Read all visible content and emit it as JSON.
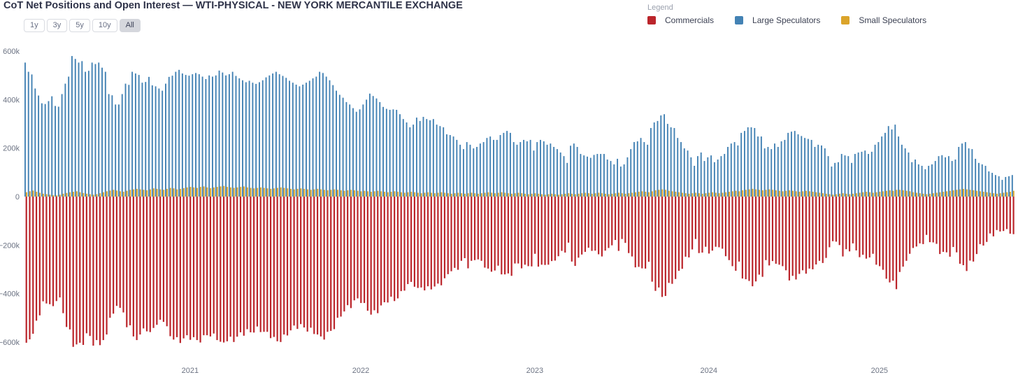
{
  "title": "CoT Net Positions and Open Interest — WTI-PHYSICAL - NEW YORK MERCANTILE EXCHANGE",
  "toolbar": {
    "ranges": [
      "1y",
      "3y",
      "5y",
      "10y",
      "All"
    ],
    "active": "All"
  },
  "legend": {
    "label": "Legend",
    "items": [
      {
        "label": "Commercials",
        "color": "#bb252b"
      },
      {
        "label": "Large Speculators",
        "color": "#4382b4"
      },
      {
        "label": "Small Speculators",
        "color": "#dba42a"
      }
    ]
  },
  "chart_data": {
    "type": "bar",
    "title": "CoT Net Positions and Open Interest — WTI-PHYSICAL - NEW YORK MERCANTILE EXCHANGE",
    "values_unit": "thousands of contracts (net positions, weekly)",
    "grid": false,
    "legend_position": "top-right",
    "ylim": [
      -650,
      650
    ],
    "y_ticks": [
      {
        "value": 600,
        "label": "600k"
      },
      {
        "value": 400,
        "label": "400k"
      },
      {
        "value": 200,
        "label": "200k"
      },
      {
        "value": 0,
        "label": "0"
      },
      {
        "value": -200,
        "label": "−200k"
      },
      {
        "value": -400,
        "label": "−400k"
      },
      {
        "value": -600,
        "label": "−600k"
      }
    ],
    "x_year_labels": [
      "2021",
      "2022",
      "2023",
      "2024",
      "2025"
    ],
    "year_tick_indices": [
      49,
      100,
      152,
      204,
      255
    ],
    "series": [
      {
        "name": "Commercials",
        "color": "#bb252b",
        "values": [
          -603,
          -589,
          -566,
          -512,
          -490,
          -432,
          -441,
          -444,
          -452,
          -431,
          -416,
          -481,
          -538,
          -548,
          -620,
          -610,
          -603,
          -612,
          -564,
          -575,
          -615,
          -592,
          -613,
          -592,
          -569,
          -500,
          -483,
          -451,
          -459,
          -478,
          -539,
          -531,
          -577,
          -592,
          -569,
          -544,
          -556,
          -559,
          -542,
          -529,
          -508,
          -517,
          -535,
          -576,
          -590,
          -580,
          -604,
          -585,
          -572,
          -591,
          -580,
          -592,
          -602,
          -572,
          -572,
          -577,
          -565,
          -592,
          -599,
          -602,
          -597,
          -578,
          -600,
          -578,
          -560,
          -574,
          -547,
          -560,
          -561,
          -536,
          -559,
          -558,
          -558,
          -584,
          -579,
          -597,
          -600,
          -569,
          -573,
          -552,
          -532,
          -546,
          -526,
          -540,
          -557,
          -541,
          -567,
          -569,
          -577,
          -590,
          -558,
          -554,
          -547,
          -500,
          -495,
          -474,
          -448,
          -460,
          -428,
          -420,
          -439,
          -439,
          -471,
          -487,
          -469,
          -481,
          -449,
          -436,
          -437,
          -413,
          -431,
          -420,
          -390,
          -388,
          -361,
          -352,
          -372,
          -377,
          -375,
          -387,
          -370,
          -383,
          -371,
          -359,
          -366,
          -337,
          -320,
          -308,
          -294,
          -302,
          -265,
          -254,
          -296,
          -265,
          -262,
          -259,
          -265,
          -293,
          -297,
          -310,
          -305,
          -285,
          -321,
          -321,
          -317,
          -327,
          -276,
          -276,
          -296,
          -281,
          -287,
          -288,
          -236,
          -289,
          -281,
          -282,
          -281,
          -266,
          -264,
          -246,
          -224,
          -231,
          -190,
          -268,
          -286,
          -252,
          -239,
          -228,
          -211,
          -224,
          -223,
          -238,
          -247,
          -223,
          -212,
          -201,
          -179,
          -224,
          -175,
          -191,
          -233,
          -247,
          -292,
          -290,
          -296,
          -297,
          -269,
          -351,
          -389,
          -375,
          -414,
          -410,
          -356,
          -360,
          -340,
          -306,
          -298,
          -248,
          -251,
          -218,
          -175,
          -233,
          -231,
          -207,
          -235,
          -223,
          -207,
          -209,
          -215,
          -246,
          -262,
          -287,
          -306,
          -268,
          -338,
          -341,
          -348,
          -370,
          -350,
          -322,
          -331,
          -262,
          -284,
          -266,
          -277,
          -281,
          -287,
          -304,
          -346,
          -327,
          -342,
          -319,
          -304,
          -318,
          -297,
          -300,
          -280,
          -265,
          -274,
          -253,
          -209,
          -184,
          -186,
          -200,
          -247,
          -217,
          -226,
          -193,
          -222,
          -250,
          -240,
          -256,
          -251,
          -236,
          -281,
          -287,
          -302,
          -339,
          -354,
          -347,
          -382,
          -311,
          -289,
          -265,
          -236,
          -212,
          -206,
          -193,
          -196,
          -158,
          -188,
          -189,
          -195,
          -237,
          -228,
          -230,
          -248,
          -208,
          -230,
          -277,
          -283,
          -307,
          -264,
          -268,
          -237,
          -196,
          -202,
          -187,
          -152,
          -164,
          -138,
          -144,
          -142,
          -134,
          -153,
          -155
        ]
      },
      {
        "name": "Large Speculators",
        "color": "#4382b4",
        "values": [
          553,
          515,
          504,
          446,
          417,
          385,
          382,
          394,
          414,
          374,
          371,
          423,
          466,
          495,
          580,
          568,
          553,
          559,
          515,
          519,
          553,
          547,
          553,
          532,
          515,
          423,
          418,
          380,
          380,
          423,
          466,
          461,
          515,
          508,
          502,
          470,
          473,
          494,
          459,
          455,
          446,
          437,
          466,
          494,
          499,
          515,
          523,
          508,
          502,
          499,
          505,
          510,
          505,
          495,
          485,
          500,
          495,
          500,
          520,
          512,
          500,
          505,
          515,
          498,
          488,
          480,
          472,
          478,
          470,
          465,
          472,
          480,
          492,
          500,
          508,
          515,
          505,
          498,
          490,
          478,
          470,
          462,
          455,
          462,
          470,
          478,
          488,
          495,
          515,
          510,
          495,
          480,
          460,
          437,
          420,
          408,
          390,
          380,
          365,
          350,
          360,
          380,
          400,
          425,
          415,
          405,
          390,
          370,
          362,
          358,
          360,
          358,
          340,
          320,
          306,
          286,
          297,
          326,
          312,
          329,
          320,
          315,
          320,
          297,
          291,
          286,
          257,
          254,
          248,
          234,
          214,
          196,
          225,
          214,
          199,
          205,
          219,
          225,
          242,
          248,
          234,
          234,
          254,
          263,
          271,
          263,
          225,
          214,
          225,
          234,
          228,
          234,
          190,
          225,
          234,
          228,
          214,
          219,
          205,
          196,
          182,
          167,
          139,
          210,
          219,
          205,
          176,
          170,
          165,
          160,
          172,
          176,
          176,
          176,
          153,
          147,
          133,
          156,
          124,
          133,
          162,
          196,
          225,
          228,
          242,
          225,
          214,
          283,
          306,
          312,
          335,
          340,
          300,
          286,
          283,
          242,
          225,
          199,
          190,
          162,
          127,
          167,
          182,
          147,
          162,
          170,
          142,
          153,
          167,
          176,
          205,
          219,
          225,
          211,
          263,
          271,
          286,
          286,
          283,
          248,
          248,
          199,
          205,
          196,
          219,
          205,
          228,
          234,
          263,
          268,
          271,
          257,
          250,
          242,
          238,
          234,
          205,
          214,
          211,
          199,
          167,
          124,
          139,
          142,
          176,
          170,
          167,
          139,
          176,
          182,
          185,
          190,
          176,
          185,
          214,
          225,
          248,
          263,
          291,
          277,
          297,
          248,
          214,
          199,
          182,
          142,
          153,
          133,
          127,
          113,
          127,
          133,
          147,
          167,
          171,
          162,
          167,
          147,
          153,
          205,
          219,
          225,
          199,
          196,
          156,
          139,
          133,
          127,
          104,
          98,
          89,
          84,
          69,
          81,
          84,
          89
        ]
      },
      {
        "name": "Small Speculators",
        "color": "#dba42a",
        "values": [
          18,
          22,
          25,
          20,
          16,
          12,
          10,
          8,
          6,
          5,
          8,
          12,
          15,
          18,
          20,
          22,
          18,
          15,
          12,
          10,
          8,
          10,
          14,
          18,
          22,
          25,
          28,
          25,
          22,
          20,
          24,
          28,
          30,
          32,
          30,
          28,
          26,
          30,
          34,
          32,
          30,
          28,
          32,
          36,
          34,
          30,
          32,
          35,
          38,
          40,
          38,
          36,
          40,
          42,
          38,
          35,
          38,
          40,
          42,
          44,
          40,
          38,
          36,
          38,
          40,
          42,
          38,
          36,
          34,
          36,
          38,
          36,
          34,
          32,
          34,
          36,
          38,
          36,
          34,
          32,
          30,
          32,
          34,
          32,
          30,
          28,
          30,
          32,
          30,
          28,
          26,
          28,
          30,
          28,
          26,
          24,
          26,
          28,
          26,
          24,
          22,
          24,
          22,
          20,
          22,
          24,
          22,
          20,
          18,
          20,
          22,
          20,
          18,
          16,
          18,
          20,
          18,
          16,
          14,
          16,
          18,
          16,
          14,
          16,
          18,
          16,
          14,
          12,
          14,
          16,
          14,
          12,
          14,
          16,
          14,
          12,
          14,
          16,
          18,
          16,
          14,
          16,
          18,
          16,
          14,
          12,
          14,
          16,
          14,
          12,
          10,
          12,
          14,
          12,
          10,
          8,
          10,
          12,
          10,
          8,
          10,
          12,
          14,
          12,
          10,
          12,
          14,
          16,
          14,
          12,
          14,
          16,
          14,
          12,
          10,
          12,
          14,
          16,
          14,
          12,
          14,
          16,
          18,
          20,
          22,
          20,
          18,
          22,
          26,
          28,
          30,
          28,
          24,
          22,
          20,
          18,
          16,
          14,
          12,
          14,
          16,
          14,
          12,
          14,
          16,
          18,
          16,
          14,
          16,
          18,
          20,
          22,
          24,
          22,
          26,
          28,
          30,
          32,
          30,
          28,
          26,
          28,
          30,
          28,
          26,
          24,
          22,
          24,
          26,
          24,
          22,
          20,
          22,
          24,
          22,
          20,
          18,
          16,
          14,
          12,
          10,
          8,
          10,
          12,
          14,
          12,
          10,
          12,
          14,
          16,
          18,
          20,
          18,
          16,
          18,
          20,
          22,
          24,
          26,
          24,
          28,
          28,
          26,
          24,
          22,
          18,
          16,
          14,
          12,
          10,
          12,
          14,
          16,
          18,
          20,
          22,
          24,
          26,
          28,
          30,
          32,
          30,
          28,
          26,
          24,
          22,
          20,
          18,
          16,
          14,
          12,
          14,
          16,
          18,
          20,
          24
        ]
      }
    ]
  }
}
